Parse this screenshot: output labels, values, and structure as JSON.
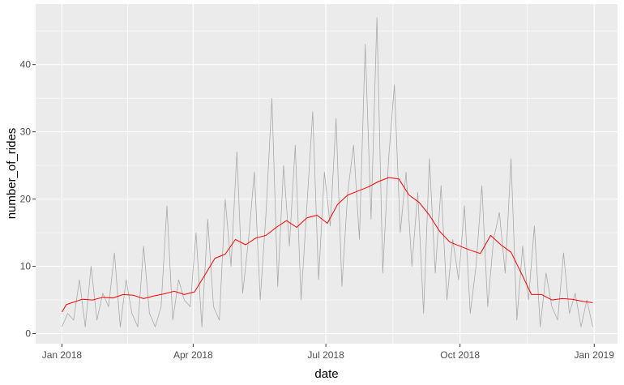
{
  "chart_data": {
    "type": "line",
    "xlabel": "date",
    "ylabel": "number_of_rides",
    "x_range": [
      "2017-12-14",
      "2019-01-17"
    ],
    "ylim": [
      -1.5,
      49
    ],
    "x_ticks": [
      {
        "date": "2018-01-01",
        "label": "Jan 2018"
      },
      {
        "date": "2018-04-01",
        "label": "Apr 2018"
      },
      {
        "date": "2018-07-01",
        "label": "Jul 2018"
      },
      {
        "date": "2018-10-01",
        "label": "Oct 2018"
      },
      {
        "date": "2019-01-01",
        "label": "Jan 2019"
      }
    ],
    "x_minor_dates": [
      "2018-02-15",
      "2018-05-16",
      "2018-08-16",
      "2018-11-16"
    ],
    "y_ticks": [
      0,
      10,
      20,
      30,
      40
    ],
    "y_minor": [
      5,
      15,
      25,
      35,
      45
    ],
    "grid": true,
    "background": "#ebebeb",
    "grid_color": "#ffffff",
    "series": [
      {
        "color": "#aaaaaa",
        "line_width": 0.8,
        "x": [
          "2018-01-01",
          "2018-01-05",
          "2018-01-09",
          "2018-01-13",
          "2018-01-17",
          "2018-01-21",
          "2018-01-25",
          "2018-01-29",
          "2018-02-02",
          "2018-02-06",
          "2018-02-10",
          "2018-02-14",
          "2018-02-18",
          "2018-02-22",
          "2018-02-26",
          "2018-03-02",
          "2018-03-06",
          "2018-03-10",
          "2018-03-14",
          "2018-03-18",
          "2018-03-22",
          "2018-03-26",
          "2018-03-30",
          "2018-04-03",
          "2018-04-07",
          "2018-04-11",
          "2018-04-15",
          "2018-04-19",
          "2018-04-23",
          "2018-04-27",
          "2018-05-01",
          "2018-05-05",
          "2018-05-09",
          "2018-05-13",
          "2018-05-17",
          "2018-05-21",
          "2018-05-25",
          "2018-05-29",
          "2018-06-02",
          "2018-06-06",
          "2018-06-10",
          "2018-06-14",
          "2018-06-18",
          "2018-06-22",
          "2018-06-26",
          "2018-06-30",
          "2018-07-04",
          "2018-07-08",
          "2018-07-12",
          "2018-07-16",
          "2018-07-20",
          "2018-07-24",
          "2018-07-28",
          "2018-08-01",
          "2018-08-05",
          "2018-08-09",
          "2018-08-13",
          "2018-08-17",
          "2018-08-21",
          "2018-08-25",
          "2018-08-29",
          "2018-09-02",
          "2018-09-06",
          "2018-09-10",
          "2018-09-14",
          "2018-09-18",
          "2018-09-22",
          "2018-09-26",
          "2018-09-30",
          "2018-10-04",
          "2018-10-08",
          "2018-10-12",
          "2018-10-16",
          "2018-10-20",
          "2018-10-24",
          "2018-10-28",
          "2018-11-01",
          "2018-11-05",
          "2018-11-09",
          "2018-11-13",
          "2018-11-17",
          "2018-11-21",
          "2018-11-25",
          "2018-11-29",
          "2018-12-03",
          "2018-12-07",
          "2018-12-11",
          "2018-12-15",
          "2018-12-19",
          "2018-12-23",
          "2018-12-27",
          "2018-12-31"
        ],
        "values": [
          1,
          3,
          2,
          8,
          1,
          10,
          2,
          6,
          4,
          12,
          1,
          8,
          3,
          1,
          13,
          3,
          1,
          4,
          19,
          2,
          8,
          5,
          4,
          15,
          1,
          17,
          4,
          2,
          20,
          10,
          27,
          6,
          14,
          24,
          5,
          18,
          35,
          7,
          25,
          13,
          28,
          5,
          19,
          33,
          8,
          24,
          16,
          32,
          7,
          21,
          28,
          14,
          43,
          17,
          47,
          9,
          26,
          37,
          15,
          24,
          10,
          21,
          3,
          26,
          9,
          22,
          5,
          14,
          8,
          19,
          3,
          10,
          22,
          4,
          14,
          18,
          9,
          26,
          2,
          13,
          5,
          16,
          1,
          9,
          4,
          2,
          12,
          3,
          6,
          1,
          5,
          1
        ]
      },
      {
        "color": "#ff0000",
        "line_width": 1,
        "x": [
          "2018-01-01",
          "2018-01-04",
          "2018-01-08",
          "2018-01-15",
          "2018-01-22",
          "2018-01-29",
          "2018-02-05",
          "2018-02-12",
          "2018-02-19",
          "2018-02-26",
          "2018-03-05",
          "2018-03-12",
          "2018-03-19",
          "2018-03-26",
          "2018-04-02",
          "2018-04-09",
          "2018-04-16",
          "2018-04-23",
          "2018-04-30",
          "2018-05-07",
          "2018-05-14",
          "2018-05-21",
          "2018-05-28",
          "2018-06-04",
          "2018-06-11",
          "2018-06-18",
          "2018-06-25",
          "2018-07-02",
          "2018-07-09",
          "2018-07-16",
          "2018-07-23",
          "2018-07-30",
          "2018-08-06",
          "2018-08-13",
          "2018-08-20",
          "2018-08-27",
          "2018-09-03",
          "2018-09-10",
          "2018-09-17",
          "2018-09-24",
          "2018-10-01",
          "2018-10-08",
          "2018-10-15",
          "2018-10-22",
          "2018-10-29",
          "2018-11-05",
          "2018-11-12",
          "2018-11-19",
          "2018-11-26",
          "2018-12-03",
          "2018-12-10",
          "2018-12-17",
          "2018-12-24",
          "2018-12-31"
        ],
        "values": [
          3.2,
          4.3,
          4.6,
          5.1,
          5.0,
          5.4,
          5.3,
          5.8,
          5.7,
          5.2,
          5.6,
          5.9,
          6.3,
          5.8,
          6.2,
          8.7,
          11.2,
          11.8,
          14.0,
          13.2,
          14.2,
          14.6,
          15.8,
          16.8,
          15.8,
          17.2,
          17.6,
          16.4,
          19.2,
          20.6,
          21.2,
          21.8,
          22.6,
          23.2,
          23.0,
          20.6,
          19.5,
          17.6,
          15.2,
          13.6,
          13.0,
          12.4,
          11.9,
          14.6,
          13.2,
          12.1,
          9.0,
          5.8,
          5.8,
          5.0,
          5.2,
          5.1,
          4.8,
          4.6
        ]
      }
    ]
  }
}
